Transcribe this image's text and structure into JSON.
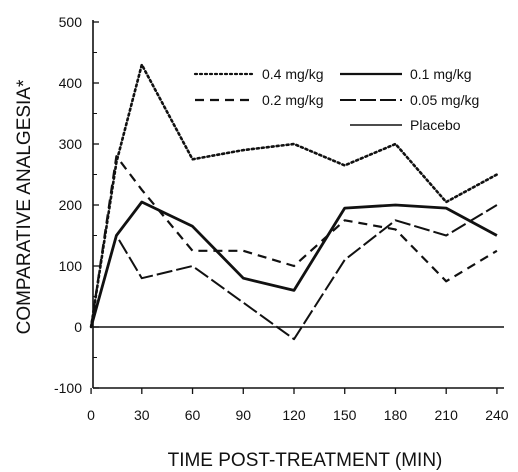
{
  "chart_data": {
    "type": "line",
    "title": "",
    "xlabel": "TIME POST-TREATMENT (MIN)",
    "ylabel": "COMPARATIVE ANALGESIA*",
    "x": [
      0,
      15,
      30,
      60,
      90,
      120,
      150,
      180,
      210,
      240
    ],
    "xticks": [
      0,
      30,
      60,
      90,
      120,
      150,
      180,
      210,
      240
    ],
    "yticks": [
      -100,
      0,
      100,
      200,
      300,
      400,
      500
    ],
    "xlim": [
      -3,
      243
    ],
    "ylim": [
      -100,
      500
    ],
    "grid": false,
    "legend_position": "top-right",
    "series": [
      {
        "name": "0.4 mg/kg",
        "style": "dotted",
        "values": [
          0,
          270,
          430,
          275,
          290,
          300,
          265,
          300,
          205,
          250
        ]
      },
      {
        "name": "0.1 mg/kg",
        "style": "solid",
        "values": [
          0,
          150,
          205,
          165,
          80,
          60,
          195,
          200,
          195,
          150
        ]
      },
      {
        "name": "0.2 mg/kg",
        "style": "dashed",
        "values": [
          0,
          280,
          225,
          125,
          125,
          100,
          175,
          160,
          75,
          125
        ]
      },
      {
        "name": "0.05 mg/kg",
        "style": "long-dash",
        "values": [
          0,
          150,
          80,
          100,
          40,
          -20,
          110,
          175,
          150,
          200
        ]
      },
      {
        "name": "Placebo",
        "style": "baseline",
        "values": [
          0,
          0,
          0,
          0,
          0,
          0,
          0,
          0,
          0,
          0
        ]
      }
    ]
  }
}
